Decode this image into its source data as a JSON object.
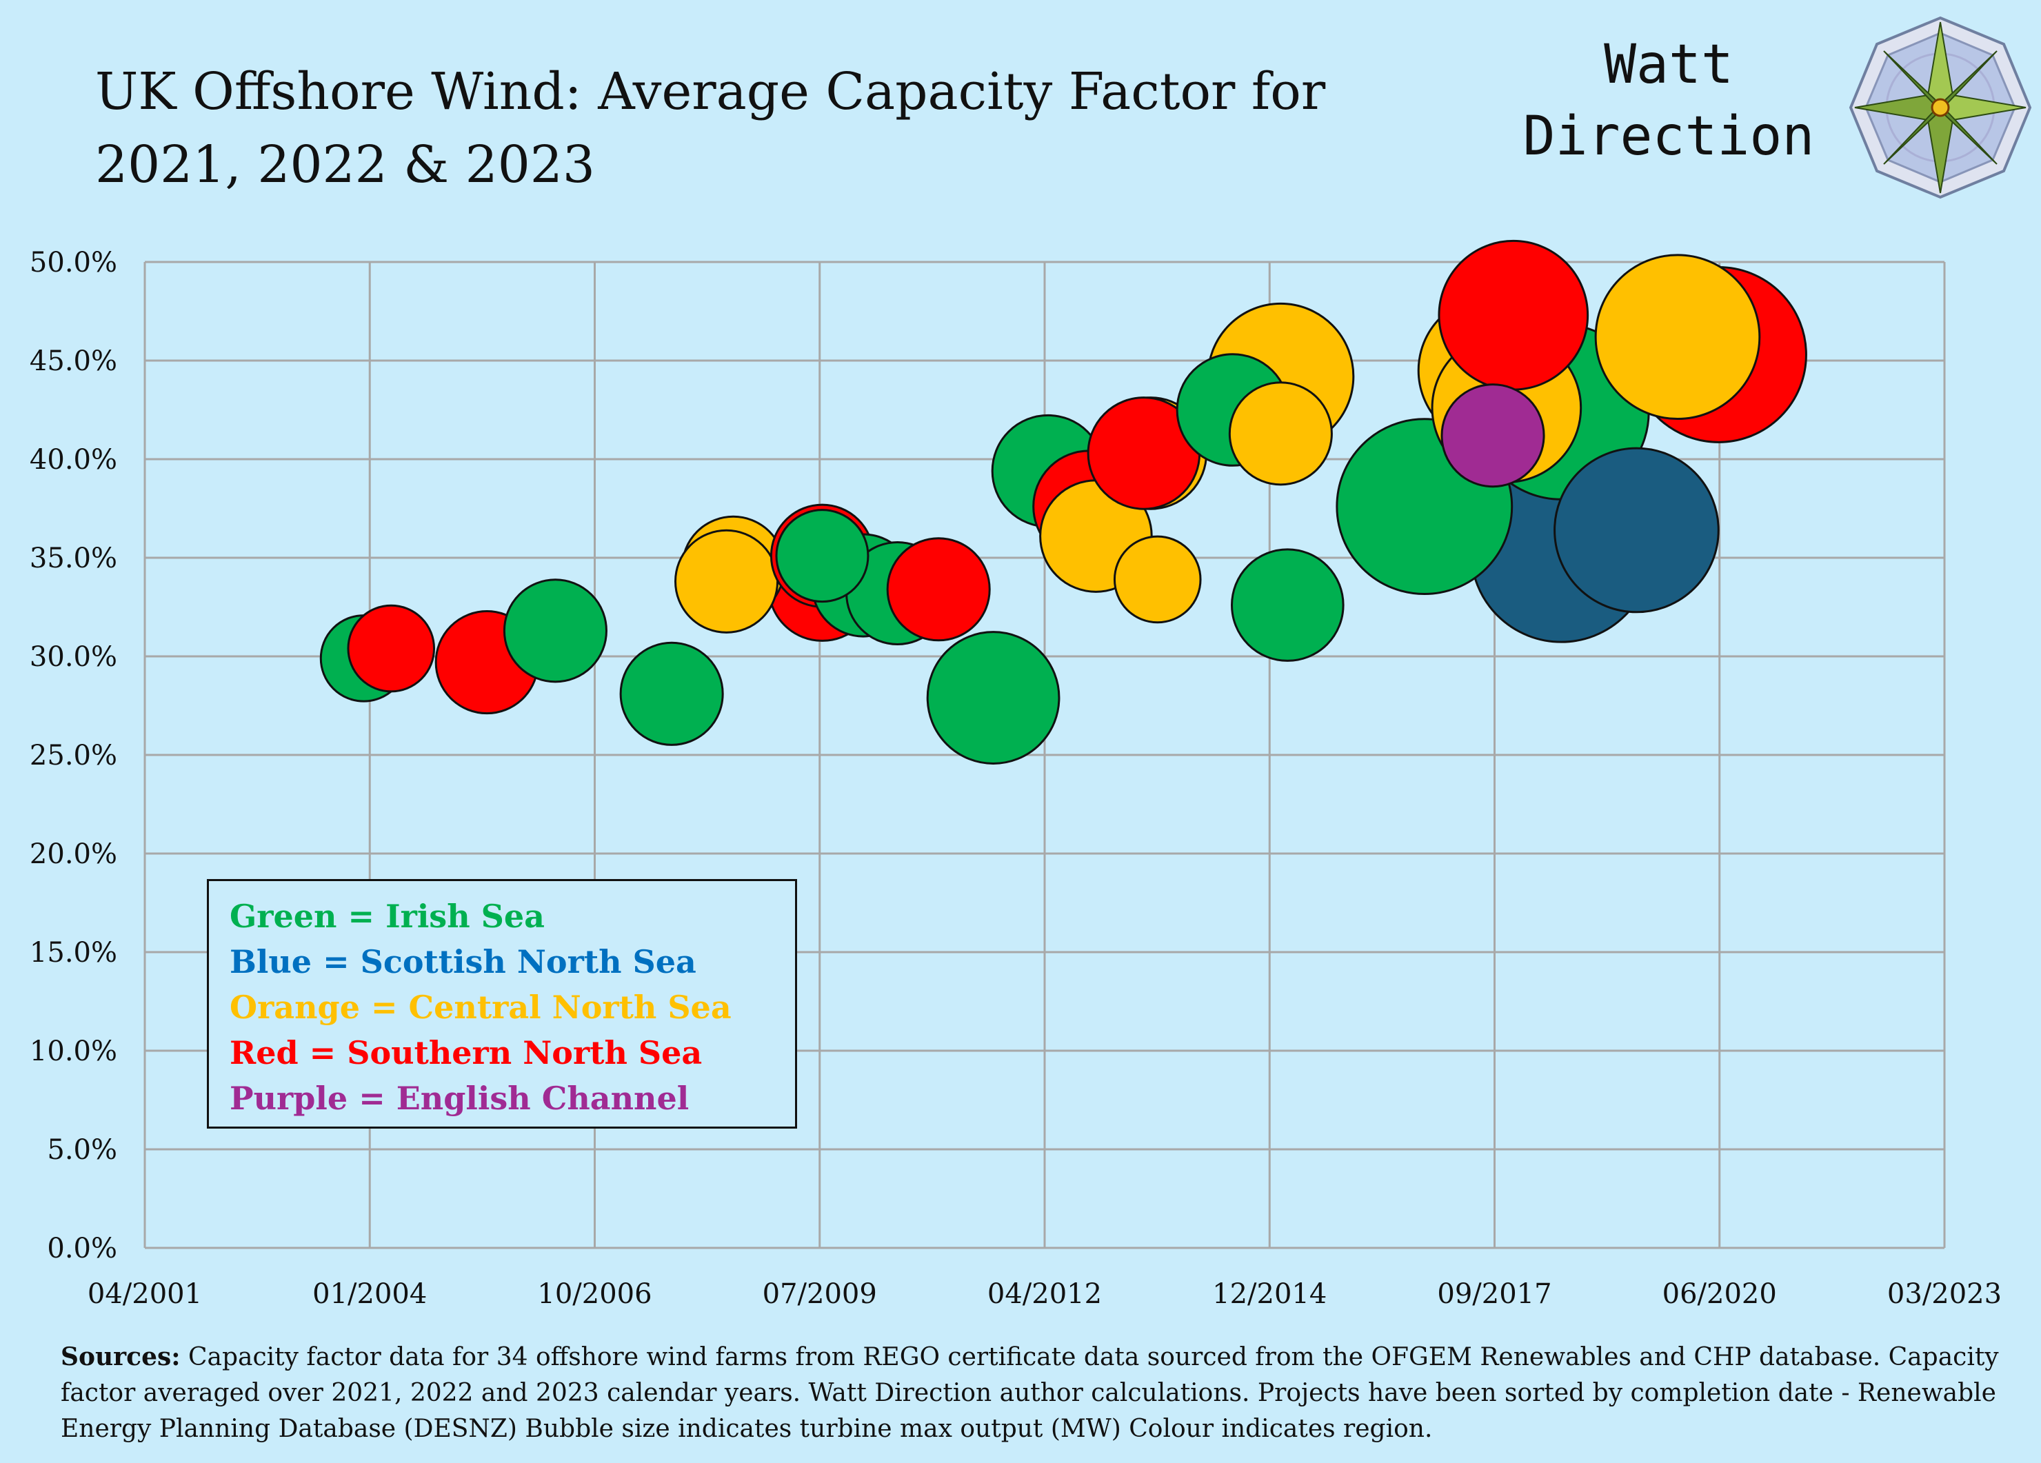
{
  "header": {
    "title_line1": "UK Offshore Wind: Average Capacity Factor for",
    "title_line2": "2021, 2022 & 2023",
    "brand_line1": "Watt",
    "brand_line2": "Direction",
    "logo_icon": "compass-rose-icon"
  },
  "legend": {
    "items": [
      {
        "label": "Green = Irish Sea",
        "color": "#00b050"
      },
      {
        "label": "Blue = Scottish North Sea",
        "color": "#0070c0"
      },
      {
        "label": "Orange = Central North Sea",
        "color": "#ffc000"
      },
      {
        "label": "Red =  Southern North Sea",
        "color": "#ff0000"
      },
      {
        "label": "Purple = English Channel",
        "color": "#a02b93"
      }
    ]
  },
  "footer": {
    "sources_label": "Sources:",
    "sources_text": " Capacity factor data for 34 offshore wind farms from REGO certificate data sourced from the OFGEM Renewables and CHP database. Capacity factor  averaged over 2021, 2022 and 2023 calendar years. Watt Direction author calculations. Projects have been sorted by completion date - Renewable Energy Planning Database (DESNZ) Bubble size indicates turbine max output (MW) Colour indicates region."
  },
  "chart_data": {
    "type": "scatter",
    "title": "UK Offshore Wind: Average Capacity Factor for 2021, 2022 & 2023",
    "xlabel": "",
    "ylabel": "",
    "x_axis": {
      "type": "date",
      "min": "2001-04",
      "max": "2023-03",
      "ticks": [
        "04/2001",
        "01/2004",
        "10/2006",
        "07/2009",
        "04/2012",
        "12/2014",
        "09/2017",
        "06/2020",
        "03/2023"
      ]
    },
    "y_axis": {
      "min": 0,
      "max": 50,
      "step": 5,
      "ticks": [
        "0.0%",
        "5.0%",
        "10.0%",
        "15.0%",
        "20.0%",
        "25.0%",
        "30.0%",
        "35.0%",
        "40.0%",
        "45.0%",
        "50.0%"
      ]
    },
    "grid": true,
    "legend_position": "bottom-left",
    "bubble_size_note": "turbine max output (MW)",
    "region_colors": {
      "green": "#00b050",
      "blue": "#1a5c80",
      "orange": "#ffc000",
      "red": "#ff0000",
      "purple": "#a02b93"
    },
    "points": [
      {
        "x": "2003-12",
        "y": 29.9,
        "size": 60,
        "region": "green"
      },
      {
        "x": "2004-04",
        "y": 30.4,
        "size": 60,
        "region": "red"
      },
      {
        "x": "2005-06",
        "y": 29.7,
        "size": 90,
        "region": "red"
      },
      {
        "x": "2006-04",
        "y": 31.3,
        "size": 90,
        "region": "green"
      },
      {
        "x": "2007-09",
        "y": 28.1,
        "size": 90,
        "region": "green"
      },
      {
        "x": "2008-06",
        "y": 34.5,
        "size": 90,
        "region": "orange"
      },
      {
        "x": "2008-05",
        "y": 33.8,
        "size": 90,
        "region": "orange"
      },
      {
        "x": "2009-07",
        "y": 33.5,
        "size": 100,
        "region": "red"
      },
      {
        "x": "2009-07",
        "y": 35.1,
        "size": 90,
        "region": "red"
      },
      {
        "x": "2009-07",
        "y": 35.1,
        "size": 70,
        "region": "green"
      },
      {
        "x": "2010-01",
        "y": 33.6,
        "size": 90,
        "region": "green"
      },
      {
        "x": "2010-06",
        "y": 33.2,
        "size": 90,
        "region": "green"
      },
      {
        "x": "2010-12",
        "y": 33.4,
        "size": 90,
        "region": "red"
      },
      {
        "x": "2011-08",
        "y": 27.9,
        "size": 160,
        "region": "green"
      },
      {
        "x": "2012-04",
        "y": 39.4,
        "size": 110,
        "region": "green"
      },
      {
        "x": "2012-10",
        "y": 37.6,
        "size": 110,
        "region": "red"
      },
      {
        "x": "2012-11",
        "y": 36.1,
        "size": 110,
        "region": "orange"
      },
      {
        "x": "2013-07",
        "y": 40.3,
        "size": 110,
        "region": "orange"
      },
      {
        "x": "2013-08",
        "y": 33.9,
        "size": 60,
        "region": "orange"
      },
      {
        "x": "2013-06",
        "y": 40.3,
        "size": 110,
        "region": "red"
      },
      {
        "x": "2014-07",
        "y": 42.5,
        "size": 110,
        "region": "green"
      },
      {
        "x": "2015-02",
        "y": 44.2,
        "size": 200,
        "region": "orange"
      },
      {
        "x": "2015-02",
        "y": 41.3,
        "size": 90,
        "region": "orange"
      },
      {
        "x": "2015-03",
        "y": 32.6,
        "size": 110,
        "region": "green"
      },
      {
        "x": "2016-11",
        "y": 37.6,
        "size": 300,
        "region": "green"
      },
      {
        "x": "2017-09",
        "y": 44.5,
        "size": 210,
        "region": "orange"
      },
      {
        "x": "2017-11",
        "y": 42.6,
        "size": 210,
        "region": "orange"
      },
      {
        "x": "2017-09",
        "y": 41.2,
        "size": 90,
        "region": "purple"
      },
      {
        "x": "2017-12",
        "y": 47.3,
        "size": 210,
        "region": "red"
      },
      {
        "x": "2018-07",
        "y": 42.4,
        "size": 300,
        "region": "green"
      },
      {
        "x": "2018-07",
        "y": 35.3,
        "size": 320,
        "region": "blue"
      },
      {
        "x": "2019-06",
        "y": 36.4,
        "size": 260,
        "region": "blue"
      },
      {
        "x": "2019-12",
        "y": 46.2,
        "size": 260,
        "region": "orange"
      },
      {
        "x": "2020-06",
        "y": 45.3,
        "size": 300,
        "region": "red"
      }
    ]
  }
}
